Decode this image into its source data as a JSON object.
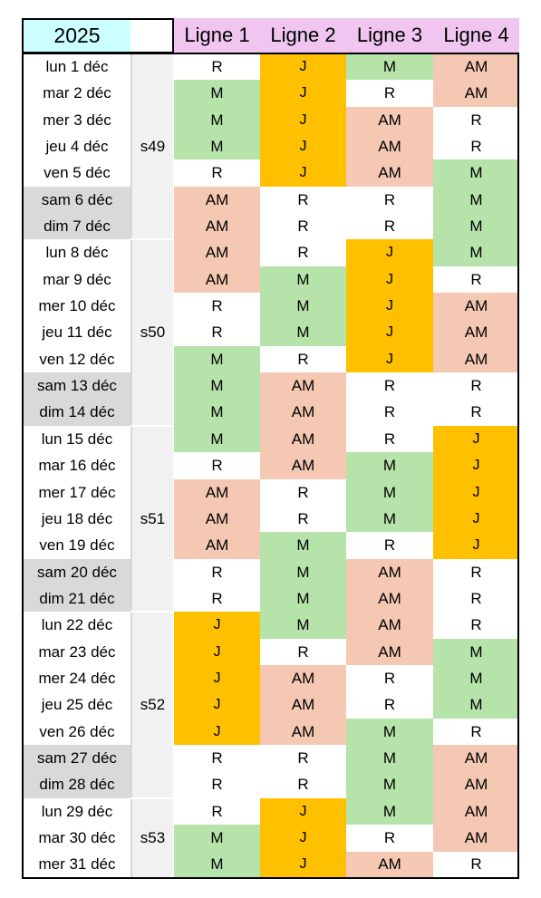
{
  "header": {
    "year": "2025",
    "lines": [
      "Ligne 1",
      "Ligne 2",
      "Ligne 3",
      "Ligne 4"
    ]
  },
  "colors": {
    "R": "#ffffff",
    "M": "#b5e3a9",
    "J": "#ffc000",
    "AM": "#f4c8b2",
    "weekend": "#d9d9d9",
    "week": "#f1f1f1",
    "year": "#ccffff",
    "line_header": "#f0c6f0"
  },
  "weeks": [
    {
      "label": "s49",
      "start": 0,
      "count": 7
    },
    {
      "label": "s50",
      "start": 7,
      "count": 7
    },
    {
      "label": "s51",
      "start": 14,
      "count": 7
    },
    {
      "label": "s52",
      "start": 21,
      "count": 7
    },
    {
      "label": "s53",
      "start": 28,
      "count": 3
    }
  ],
  "rows": [
    {
      "day": "lun 1 déc",
      "weekend": false,
      "v": [
        "R",
        "J",
        "M",
        "AM"
      ]
    },
    {
      "day": "mar 2 déc",
      "weekend": false,
      "v": [
        "M",
        "J",
        "R",
        "AM"
      ]
    },
    {
      "day": "mer 3 déc",
      "weekend": false,
      "v": [
        "M",
        "J",
        "AM",
        "R"
      ]
    },
    {
      "day": "jeu 4 déc",
      "weekend": false,
      "v": [
        "M",
        "J",
        "AM",
        "R"
      ]
    },
    {
      "day": "ven 5 déc",
      "weekend": false,
      "v": [
        "R",
        "J",
        "AM",
        "M"
      ]
    },
    {
      "day": "sam 6 déc",
      "weekend": true,
      "v": [
        "AM",
        "R",
        "R",
        "M"
      ]
    },
    {
      "day": "dim 7 déc",
      "weekend": true,
      "v": [
        "AM",
        "R",
        "R",
        "M"
      ]
    },
    {
      "day": "lun 8 déc",
      "weekend": false,
      "v": [
        "AM",
        "R",
        "J",
        "M"
      ]
    },
    {
      "day": "mar 9 déc",
      "weekend": false,
      "v": [
        "AM",
        "M",
        "J",
        "R"
      ]
    },
    {
      "day": "mer 10 déc",
      "weekend": false,
      "v": [
        "R",
        "M",
        "J",
        "AM"
      ]
    },
    {
      "day": "jeu 11 déc",
      "weekend": false,
      "v": [
        "R",
        "M",
        "J",
        "AM"
      ]
    },
    {
      "day": "ven 12 déc",
      "weekend": false,
      "v": [
        "M",
        "R",
        "J",
        "AM"
      ]
    },
    {
      "day": "sam 13 déc",
      "weekend": true,
      "v": [
        "M",
        "AM",
        "R",
        "R"
      ]
    },
    {
      "day": "dim 14 déc",
      "weekend": true,
      "v": [
        "M",
        "AM",
        "R",
        "R"
      ]
    },
    {
      "day": "lun 15 déc",
      "weekend": false,
      "v": [
        "M",
        "AM",
        "R",
        "J"
      ]
    },
    {
      "day": "mar 16 déc",
      "weekend": false,
      "v": [
        "R",
        "AM",
        "M",
        "J"
      ]
    },
    {
      "day": "mer 17 déc",
      "weekend": false,
      "v": [
        "AM",
        "R",
        "M",
        "J"
      ]
    },
    {
      "day": "jeu 18 déc",
      "weekend": false,
      "v": [
        "AM",
        "R",
        "M",
        "J"
      ]
    },
    {
      "day": "ven 19 déc",
      "weekend": false,
      "v": [
        "AM",
        "M",
        "R",
        "J"
      ]
    },
    {
      "day": "sam 20 déc",
      "weekend": true,
      "v": [
        "R",
        "M",
        "AM",
        "R"
      ]
    },
    {
      "day": "dim 21 déc",
      "weekend": true,
      "v": [
        "R",
        "M",
        "AM",
        "R"
      ]
    },
    {
      "day": "lun 22 déc",
      "weekend": false,
      "v": [
        "J",
        "M",
        "AM",
        "R"
      ]
    },
    {
      "day": "mar 23 déc",
      "weekend": false,
      "v": [
        "J",
        "R",
        "AM",
        "M"
      ]
    },
    {
      "day": "mer 24 déc",
      "weekend": false,
      "v": [
        "J",
        "AM",
        "R",
        "M"
      ]
    },
    {
      "day": "jeu 25 déc",
      "weekend": false,
      "v": [
        "J",
        "AM",
        "R",
        "M"
      ]
    },
    {
      "day": "ven 26 déc",
      "weekend": false,
      "v": [
        "J",
        "AM",
        "M",
        "R"
      ]
    },
    {
      "day": "sam 27 déc",
      "weekend": true,
      "v": [
        "R",
        "R",
        "M",
        "AM"
      ]
    },
    {
      "day": "dim 28 déc",
      "weekend": true,
      "v": [
        "R",
        "R",
        "M",
        "AM"
      ]
    },
    {
      "day": "lun 29 déc",
      "weekend": false,
      "v": [
        "R",
        "J",
        "M",
        "AM"
      ]
    },
    {
      "day": "mar 30 déc",
      "weekend": false,
      "v": [
        "M",
        "J",
        "R",
        "AM"
      ]
    },
    {
      "day": "mer 31 déc",
      "weekend": false,
      "v": [
        "M",
        "J",
        "AM",
        "R"
      ]
    }
  ]
}
